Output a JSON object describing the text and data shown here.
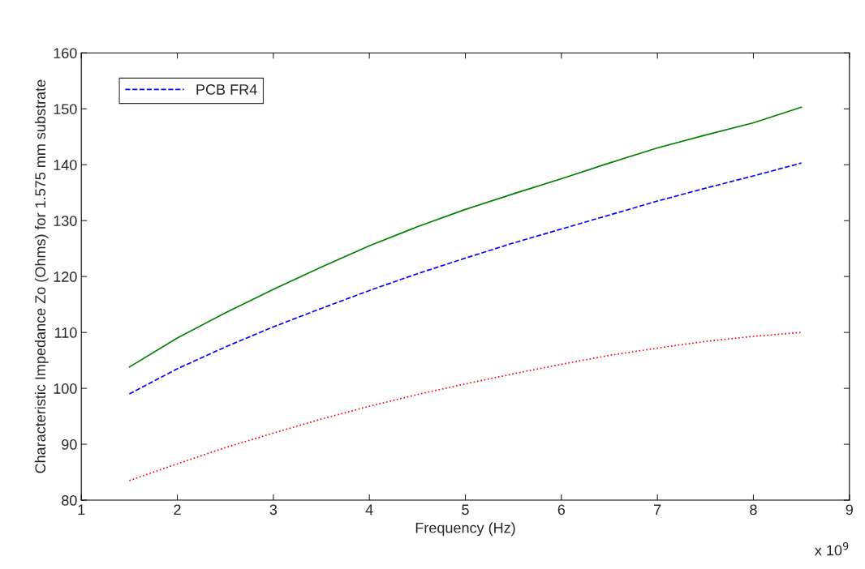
{
  "chart_data": {
    "type": "line",
    "xlabel": "Frequency (Hz)",
    "ylabel": "Characteristic Impedance Zo (Ohms) for 1.575 mm substrate",
    "annotations": [
      "x 10$^{9}$"
    ],
    "xlim": [
      1,
      9
    ],
    "xticks": [
      1,
      2,
      3,
      4,
      5,
      6,
      7,
      8,
      9
    ],
    "ylim": [
      80,
      160
    ],
    "yticks": [
      80,
      90,
      100,
      110,
      120,
      130,
      140,
      150,
      160
    ],
    "grid": false,
    "legend": "top left",
    "x": [
      1.5,
      2,
      2.5,
      3,
      3.5,
      4,
      4.5,
      5,
      5.5,
      6,
      6.5,
      7,
      7.5,
      8,
      8.5
    ],
    "series": [
      {
        "name": "PCB FR4",
        "color": "#0000ff",
        "line_style": "dashed",
        "values": [
          99,
          103.5,
          107.4,
          111,
          114.3,
          117.5,
          120.5,
          123.3,
          126,
          128.5,
          131,
          133.5,
          135.8,
          138,
          140.3
        ]
      },
      {
        "color": "#008000",
        "line_style": "solid",
        "values": [
          103.8,
          109,
          113.5,
          117.7,
          121.7,
          125.5,
          128.9,
          132,
          134.8,
          137.5,
          140.3,
          143,
          145.3,
          147.5,
          150.3
        ]
      },
      {
        "color": "#ff0000",
        "line_style": "dotted",
        "values": [
          83.5,
          86.5,
          89.4,
          92,
          94.5,
          96.8,
          98.9,
          100.8,
          102.6,
          104.3,
          105.9,
          107.2,
          108.4,
          109.3,
          110
        ]
      }
    ]
  }
}
